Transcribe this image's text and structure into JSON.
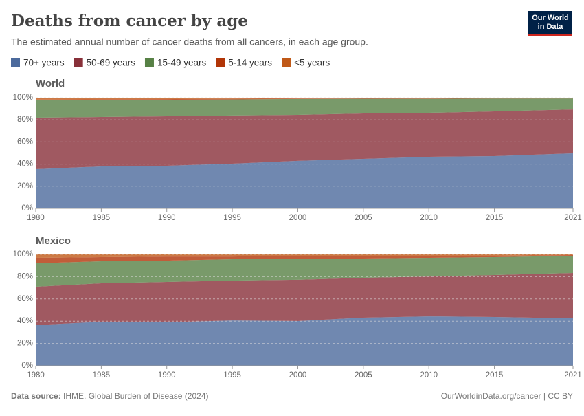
{
  "title": "Deaths from cancer by age",
  "subtitle": "The estimated annual number of cancer deaths from all cancers, in each age group.",
  "logo_lines": [
    "Our World",
    "in Data"
  ],
  "source_label": "Data source:",
  "source": "IHME, Global Burden of Disease (2024)",
  "footer_url": "OurWorldinData.org/cancer | CC BY",
  "chart_data": [
    {
      "type": "area",
      "stacked": true,
      "title": "World",
      "x": [
        1980,
        1985,
        1990,
        1995,
        2000,
        2005,
        2010,
        2015,
        2021
      ],
      "xlim": [
        1980,
        2021
      ],
      "xticks": [
        1980,
        1985,
        1990,
        1995,
        2000,
        2005,
        2010,
        2015,
        2021
      ],
      "ylim": [
        0,
        100
      ],
      "yticks": [
        {
          "value": 0,
          "label": "0%"
        },
        {
          "value": 20,
          "label": "20%"
        },
        {
          "value": 40,
          "label": "40%"
        },
        {
          "value": 60,
          "label": "60%"
        },
        {
          "value": 80,
          "label": "80%"
        },
        {
          "value": 100,
          "label": "100%"
        }
      ],
      "grid": true,
      "series": [
        {
          "name": "70+ years",
          "color": "#4c6a9c",
          "values": [
            35.4,
            37.9,
            38.5,
            40.4,
            42.9,
            44.7,
            46.6,
            47.2,
            49.7
          ]
        },
        {
          "name": "50-69 years",
          "color": "#883039",
          "values": [
            46.6,
            44.7,
            44.7,
            43.5,
            41.6,
            41.0,
            39.7,
            40.4,
            39.7
          ]
        },
        {
          "name": "15-49 years",
          "color": "#578145",
          "values": [
            15.5,
            15.2,
            14.9,
            14.5,
            14.3,
            13.3,
            12.7,
            11.6,
            9.9
          ]
        },
        {
          "name": "5-14 years",
          "color": "#b13507",
          "values": [
            0.8,
            0.7,
            0.6,
            0.5,
            0.4,
            0.35,
            0.3,
            0.3,
            0.25
          ]
        },
        {
          "name": "<5 years",
          "color": "#c05917",
          "values": [
            1.7,
            1.5,
            1.3,
            1.1,
            0.8,
            0.65,
            0.7,
            0.5,
            0.45
          ]
        }
      ]
    },
    {
      "type": "area",
      "stacked": true,
      "title": "Mexico",
      "x": [
        1980,
        1985,
        1990,
        1995,
        2000,
        2005,
        2010,
        2015,
        2021
      ],
      "xlim": [
        1980,
        2021
      ],
      "xticks": [
        1980,
        1985,
        1990,
        1995,
        2000,
        2005,
        2010,
        2015,
        2021
      ],
      "ylim": [
        0,
        100
      ],
      "yticks": [
        {
          "value": 0,
          "label": "0%"
        },
        {
          "value": 20,
          "label": "20%"
        },
        {
          "value": 40,
          "label": "40%"
        },
        {
          "value": 60,
          "label": "60%"
        },
        {
          "value": 80,
          "label": "80%"
        },
        {
          "value": 100,
          "label": "100%"
        }
      ],
      "grid": true,
      "series": [
        {
          "color": "#4c6a9c",
          "values": [
            36.4,
            39.5,
            38.9,
            40.7,
            40.1,
            43.2,
            44.4,
            43.8,
            42.6
          ]
        },
        {
          "color": "#883039",
          "values": [
            34.6,
            34.6,
            36.4,
            35.8,
            37.1,
            35.8,
            35.8,
            37.7,
            40.7
          ]
        },
        {
          "color": "#578145",
          "values": [
            21.0,
            19.7,
            19.1,
            19.2,
            18.5,
            17.3,
            16.7,
            16.0,
            15.5
          ]
        },
        {
          "color": "#b13507",
          "values": [
            4.9,
            3.7,
            3.7,
            2.4,
            3.1,
            2.2,
            1.6,
            1.2,
            0.6
          ]
        },
        {
          "color": "#c05917",
          "values": [
            3.1,
            2.5,
            1.9,
            1.9,
            1.2,
            1.5,
            1.5,
            1.3,
            0.6
          ]
        }
      ]
    }
  ]
}
